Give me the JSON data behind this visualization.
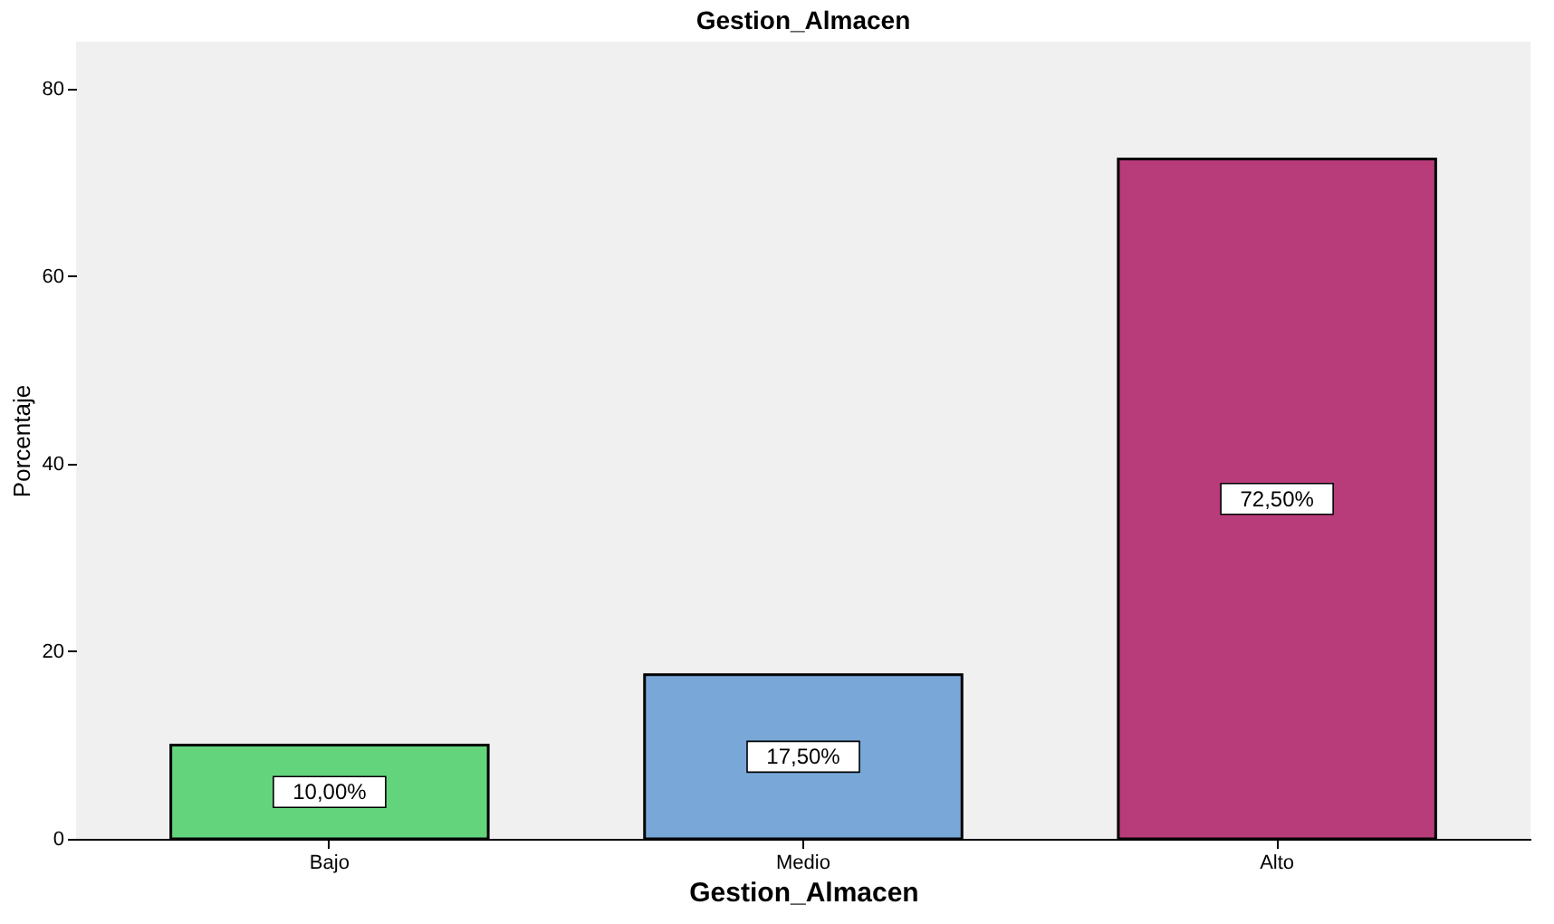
{
  "chart_data": {
    "type": "bar",
    "title": "Gestion_Almacen",
    "xlabel": "Gestion_Almacen",
    "ylabel": "Porcentaje",
    "categories": [
      "Bajo",
      "Medio",
      "Alto"
    ],
    "values": [
      10.0,
      17.5,
      72.5
    ],
    "colors": [
      "#64d47c",
      "#79a7d8",
      "#b83c7a"
    ],
    "value_labels": [
      "10,00%",
      "17,50%",
      "72,50%"
    ],
    "ylim": [
      0,
      85
    ],
    "yticks": [
      0,
      20,
      40,
      60,
      80
    ],
    "grid": false
  }
}
